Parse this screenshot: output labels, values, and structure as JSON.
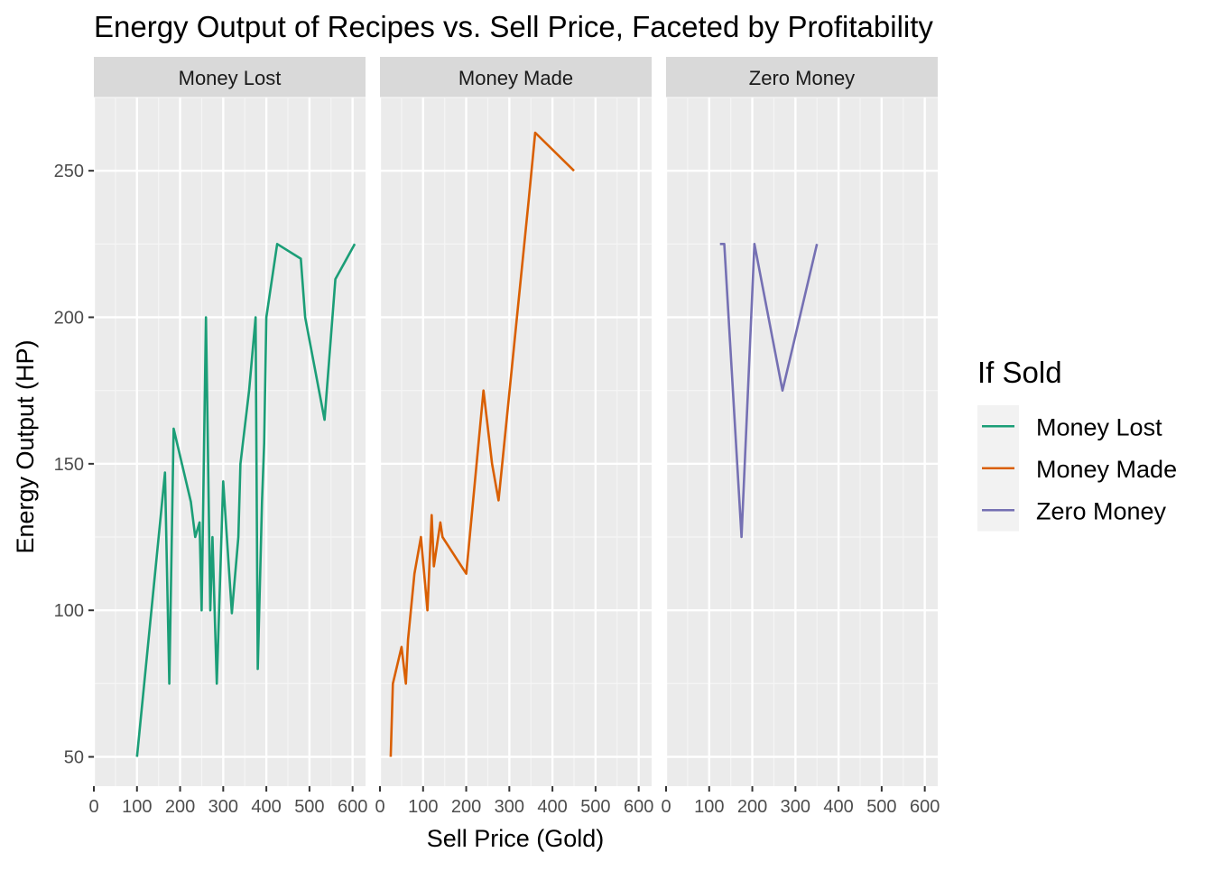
{
  "chart_data": {
    "type": "line",
    "title": "Energy Output of Recipes vs. Sell Price, Faceted by Profitability",
    "xlabel": "Sell Price (Gold)",
    "ylabel": "Energy Output (HP)",
    "xlim": [
      0,
      630
    ],
    "ylim": [
      40,
      275
    ],
    "x_ticks": [
      0,
      100,
      200,
      300,
      400,
      500,
      600
    ],
    "y_ticks": [
      50,
      100,
      150,
      200,
      250
    ],
    "grid": true,
    "legend": {
      "title": "If Sold",
      "position": "right",
      "entries": [
        "Money Lost",
        "Money Made",
        "Zero Money"
      ]
    },
    "series": [
      {
        "name": "Money Lost",
        "facet": "Money Lost",
        "color": "#1b9e77",
        "points": [
          {
            "x": 100,
            "y": 50
          },
          {
            "x": 165,
            "y": 147
          },
          {
            "x": 175,
            "y": 75
          },
          {
            "x": 185,
            "y": 162
          },
          {
            "x": 225,
            "y": 137
          },
          {
            "x": 235,
            "y": 125
          },
          {
            "x": 245,
            "y": 130
          },
          {
            "x": 250,
            "y": 100
          },
          {
            "x": 260,
            "y": 200
          },
          {
            "x": 270,
            "y": 100
          },
          {
            "x": 275,
            "y": 125
          },
          {
            "x": 285,
            "y": 75
          },
          {
            "x": 300,
            "y": 144
          },
          {
            "x": 320,
            "y": 99
          },
          {
            "x": 335,
            "y": 125
          },
          {
            "x": 340,
            "y": 150
          },
          {
            "x": 360,
            "y": 175
          },
          {
            "x": 375,
            "y": 200
          },
          {
            "x": 380,
            "y": 80
          },
          {
            "x": 390,
            "y": 137
          },
          {
            "x": 395,
            "y": 157
          },
          {
            "x": 400,
            "y": 200
          },
          {
            "x": 415,
            "y": 215
          },
          {
            "x": 425,
            "y": 225
          },
          {
            "x": 480,
            "y": 220
          },
          {
            "x": 490,
            "y": 200
          },
          {
            "x": 535,
            "y": 165
          },
          {
            "x": 560,
            "y": 213
          },
          {
            "x": 605,
            "y": 225
          }
        ]
      },
      {
        "name": "Money Made",
        "facet": "Money Made",
        "color": "#d95f02",
        "points": [
          {
            "x": 25,
            "y": 50
          },
          {
            "x": 30,
            "y": 75
          },
          {
            "x": 50,
            "y": 87.5
          },
          {
            "x": 60,
            "y": 75
          },
          {
            "x": 65,
            "y": 90
          },
          {
            "x": 80,
            "y": 112.5
          },
          {
            "x": 95,
            "y": 125
          },
          {
            "x": 110,
            "y": 100
          },
          {
            "x": 120,
            "y": 132.5
          },
          {
            "x": 125,
            "y": 115
          },
          {
            "x": 140,
            "y": 130
          },
          {
            "x": 145,
            "y": 125
          },
          {
            "x": 200,
            "y": 112.5
          },
          {
            "x": 240,
            "y": 175
          },
          {
            "x": 260,
            "y": 150
          },
          {
            "x": 275,
            "y": 137.5
          },
          {
            "x": 345,
            "y": 240
          },
          {
            "x": 360,
            "y": 263
          },
          {
            "x": 450,
            "y": 250
          }
        ]
      },
      {
        "name": "Zero Money",
        "facet": "Zero Money",
        "color": "#7570b3",
        "points": [
          {
            "x": 125,
            "y": 225
          },
          {
            "x": 135,
            "y": 225
          },
          {
            "x": 175,
            "y": 125
          },
          {
            "x": 205,
            "y": 225
          },
          {
            "x": 270,
            "y": 175
          },
          {
            "x": 350,
            "y": 225
          }
        ]
      }
    ],
    "facets": [
      "Money Lost",
      "Money Made",
      "Zero Money"
    ]
  }
}
